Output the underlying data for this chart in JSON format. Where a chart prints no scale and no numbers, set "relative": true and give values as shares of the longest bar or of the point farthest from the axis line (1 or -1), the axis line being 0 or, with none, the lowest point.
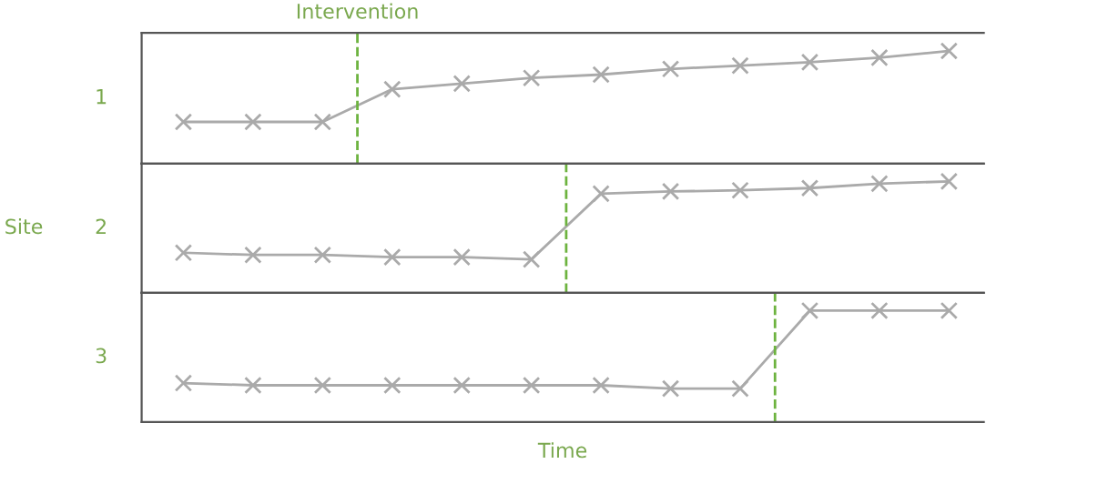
{
  "chart_data": [
    {
      "type": "line",
      "relative": true,
      "tick_labels": false,
      "marker": "cross",
      "line_style": "solid",
      "ylabel": "1",
      "annotations": [
        "Intervention"
      ],
      "categories": [
        null,
        null,
        null,
        null,
        null,
        null,
        null,
        null,
        null,
        null,
        null,
        null
      ],
      "series": [
        {
          "color": "#aaaaaa",
          "values": [
            0.37,
            0.37,
            0.37,
            0.66,
            0.71,
            0.76,
            0.79,
            0.84,
            0.87,
            0.9,
            0.94,
            1
          ]
        }
      ]
    },
    {
      "type": "line",
      "relative": true,
      "tick_labels": false,
      "marker": "cross",
      "line_style": "solid",
      "ylabel": "2",
      "annotations": [
        "Site"
      ],
      "categories": [
        null,
        null,
        null,
        null,
        null,
        null,
        null,
        null,
        null,
        null,
        null,
        null
      ],
      "series": [
        {
          "color": "#aaaaaa",
          "values": [
            0.36,
            0.34,
            0.34,
            0.32,
            0.32,
            0.3,
            0.89,
            0.91,
            0.92,
            0.94,
            0.98,
            1
          ]
        }
      ]
    },
    {
      "type": "line",
      "relative": true,
      "tick_labels": false,
      "marker": "cross",
      "line_style": "solid",
      "ylabel": "3",
      "xlabel": "Time",
      "categories": [
        null,
        null,
        null,
        null,
        null,
        null,
        null,
        null,
        null,
        null,
        null,
        null
      ],
      "series": [
        {
          "color": "#aaaaaa",
          "values": [
            0.35,
            0.33,
            0.33,
            0.33,
            0.33,
            0.33,
            0.33,
            0.3,
            0.3,
            1,
            1,
            1
          ]
        }
      ]
    }
  ]
}
